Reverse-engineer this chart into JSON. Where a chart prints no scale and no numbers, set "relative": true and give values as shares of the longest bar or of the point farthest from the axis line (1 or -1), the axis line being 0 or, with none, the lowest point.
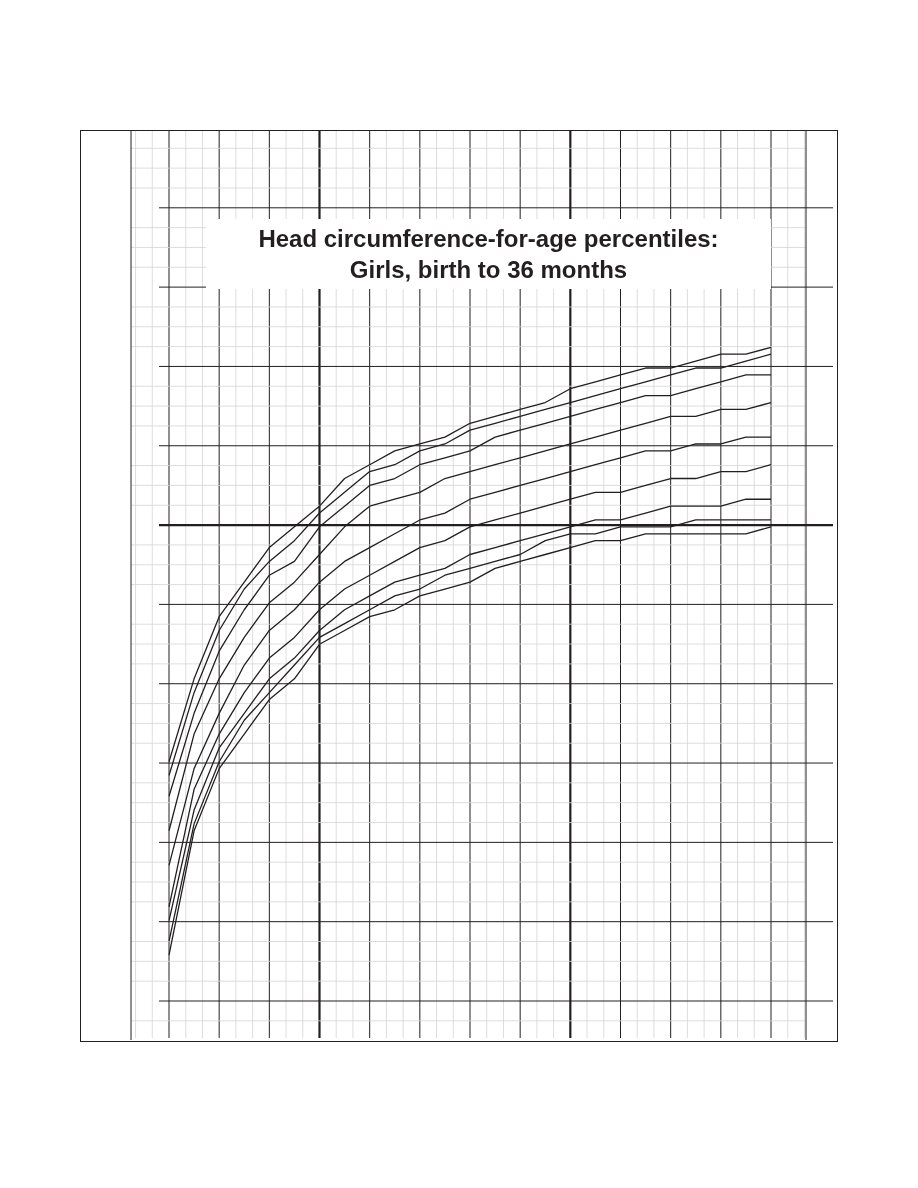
{
  "chart_data": {
    "type": "line",
    "title": "Head circumference-for-age percentiles:\nGirls, birth to 36 months",
    "relative": true,
    "grid": true,
    "legend": false,
    "marker": "none",
    "categories": [
      null,
      null,
      null,
      null,
      null,
      null,
      null,
      null,
      null,
      null,
      null,
      null,
      null,
      null,
      null,
      null,
      null,
      null,
      null,
      null,
      null,
      null,
      null,
      null,
      null
    ],
    "series": [
      {
        "color": "#231f20",
        "values": [
          0.4,
          0.52,
          0.61,
          0.66,
          0.71,
          0.74,
          0.77,
          0.81,
          0.83,
          0.85,
          0.86,
          0.87,
          0.89,
          0.9,
          0.91,
          0.92,
          0.94,
          0.95,
          0.96,
          0.97,
          0.97,
          0.98,
          0.99,
          0.99,
          1
        ]
      },
      {
        "color": "#231f20",
        "values": [
          0.38,
          0.5,
          0.59,
          0.65,
          0.69,
          0.72,
          0.76,
          0.79,
          0.82,
          0.83,
          0.85,
          0.86,
          0.88,
          0.89,
          0.9,
          0.91,
          0.92,
          0.93,
          0.94,
          0.95,
          0.96,
          0.97,
          0.97,
          0.98,
          0.99
        ]
      },
      {
        "color": "#231f20",
        "values": [
          0.35,
          0.47,
          0.56,
          0.62,
          0.67,
          0.69,
          0.74,
          0.77,
          0.8,
          0.81,
          0.83,
          0.84,
          0.85,
          0.87,
          0.88,
          0.89,
          0.9,
          0.91,
          0.92,
          0.93,
          0.93,
          0.94,
          0.95,
          0.96,
          0.96
        ]
      },
      {
        "color": "#231f20",
        "values": [
          0.3,
          0.44,
          0.52,
          0.58,
          0.63,
          0.66,
          0.7,
          0.74,
          0.77,
          0.78,
          0.79,
          0.81,
          0.82,
          0.83,
          0.84,
          0.85,
          0.86,
          0.87,
          0.88,
          0.89,
          0.9,
          0.9,
          0.91,
          0.91,
          0.92
        ]
      },
      {
        "color": "#231f20",
        "values": [
          0.25,
          0.39,
          0.47,
          0.54,
          0.59,
          0.62,
          0.66,
          0.69,
          0.71,
          0.73,
          0.75,
          0.76,
          0.78,
          0.79,
          0.8,
          0.81,
          0.82,
          0.83,
          0.84,
          0.85,
          0.85,
          0.86,
          0.86,
          0.87,
          0.87
        ]
      },
      {
        "color": "#231f20",
        "values": [
          0.19,
          0.36,
          0.44,
          0.5,
          0.55,
          0.58,
          0.62,
          0.65,
          0.67,
          0.69,
          0.71,
          0.72,
          0.74,
          0.75,
          0.76,
          0.77,
          0.78,
          0.79,
          0.79,
          0.8,
          0.81,
          0.81,
          0.82,
          0.82,
          0.83
        ]
      },
      {
        "color": "#231f20",
        "values": [
          0.17,
          0.33,
          0.42,
          0.47,
          0.52,
          0.55,
          0.59,
          0.62,
          0.64,
          0.66,
          0.67,
          0.68,
          0.7,
          0.71,
          0.72,
          0.73,
          0.74,
          0.75,
          0.75,
          0.76,
          0.77,
          0.77,
          0.77,
          0.78,
          0.78
        ]
      },
      {
        "color": "#231f20",
        "values": [
          0.14,
          0.31,
          0.4,
          0.46,
          0.5,
          0.54,
          0.58,
          0.6,
          0.62,
          0.64,
          0.65,
          0.67,
          0.68,
          0.69,
          0.7,
          0.72,
          0.73,
          0.73,
          0.74,
          0.74,
          0.74,
          0.75,
          0.75,
          0.75,
          0.75
        ]
      },
      {
        "color": "#231f20",
        "values": [
          0.12,
          0.3,
          0.39,
          0.44,
          0.49,
          0.52,
          0.57,
          0.59,
          0.61,
          0.62,
          0.64,
          0.65,
          0.66,
          0.68,
          0.69,
          0.7,
          0.71,
          0.72,
          0.72,
          0.73,
          0.73,
          0.73,
          0.73,
          0.73,
          0.74
        ]
      }
    ]
  }
}
